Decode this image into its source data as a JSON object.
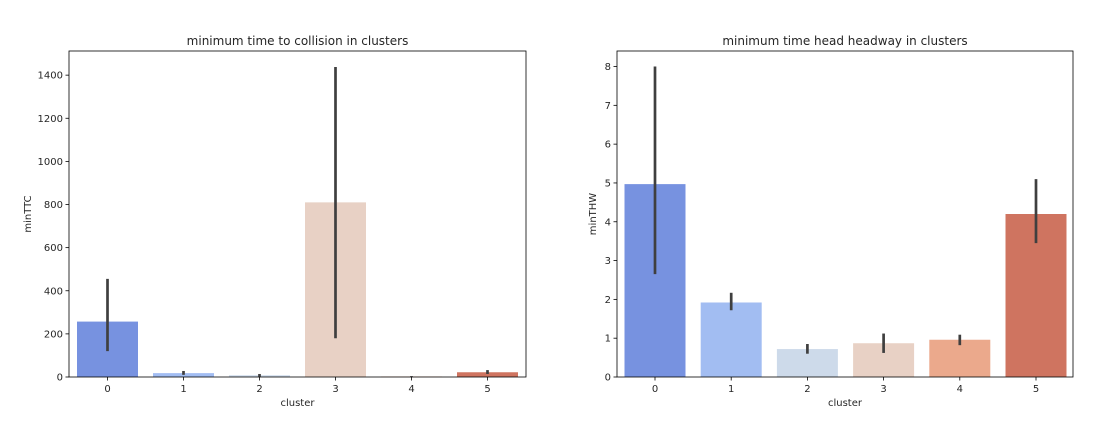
{
  "chart_data": [
    {
      "type": "bar",
      "title": "minimum time to collision in clusters",
      "xlabel": "cluster",
      "ylabel": "minTTC",
      "categories": [
        "0",
        "1",
        "2",
        "3",
        "4",
        "5"
      ],
      "values": [
        257,
        18,
        8,
        810,
        2,
        22
      ],
      "error_bars": [
        [
          120,
          455
        ],
        [
          10,
          28
        ],
        [
          2,
          14
        ],
        [
          180,
          1438
        ],
        [
          0,
          4
        ],
        [
          14,
          32
        ]
      ],
      "bar_colors": [
        "#7792e0",
        "#a2bdf2",
        "#cddaea",
        "#e8d1c5",
        "#eba98c",
        "#cf7460"
      ],
      "yticks": [
        0,
        200,
        400,
        600,
        800,
        1000,
        1200,
        1400
      ],
      "ylim": [
        0,
        1512
      ],
      "grid": false
    },
    {
      "type": "bar",
      "title": "minimum time head headway in clusters",
      "xlabel": "cluster",
      "ylabel": "minTHW",
      "categories": [
        "0",
        "1",
        "2",
        "3",
        "4",
        "5"
      ],
      "values": [
        4.97,
        1.92,
        0.72,
        0.87,
        0.96,
        4.2
      ],
      "error_bars": [
        [
          2.65,
          8.0
        ],
        [
          1.72,
          2.17
        ],
        [
          0.6,
          0.85
        ],
        [
          0.62,
          1.12
        ],
        [
          0.82,
          1.09
        ],
        [
          3.45,
          5.1
        ]
      ],
      "bar_colors": [
        "#7792e0",
        "#a2bdf2",
        "#cddaea",
        "#e8d1c5",
        "#eba98c",
        "#cf7460"
      ],
      "yticks": [
        0,
        1,
        2,
        3,
        4,
        5,
        6,
        7,
        8
      ],
      "ylim": [
        0,
        8.4
      ],
      "grid": false
    }
  ]
}
